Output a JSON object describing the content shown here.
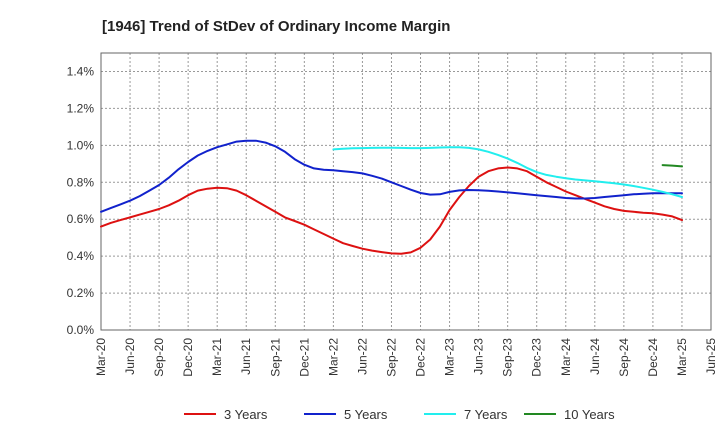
{
  "chart_data": {
    "type": "line",
    "title": "[1946]  Trend of StDev of Ordinary Income Margin",
    "xlabel": "",
    "ylabel": "",
    "x_ticks": [
      "Mar-20",
      "Jun-20",
      "Sep-20",
      "Dec-20",
      "Mar-21",
      "Jun-21",
      "Sep-21",
      "Dec-21",
      "Mar-22",
      "Jun-22",
      "Sep-22",
      "Dec-22",
      "Mar-23",
      "Jun-23",
      "Sep-23",
      "Dec-23",
      "Mar-24",
      "Jun-24",
      "Sep-24",
      "Dec-24",
      "Mar-25",
      "Jun-25"
    ],
    "y_ticks": [
      "0.0%",
      "0.2%",
      "0.4%",
      "0.6%",
      "0.8%",
      "1.0%",
      "1.2%",
      "1.4%"
    ],
    "ylim": [
      0,
      1.5
    ],
    "grid": true,
    "legend_position": "bottom",
    "series": [
      {
        "name": "3 Years",
        "color": "#dd1111",
        "x": [
          "Mar-20",
          "Apr-20",
          "May-20",
          "Jun-20",
          "Jul-20",
          "Aug-20",
          "Sep-20",
          "Oct-20",
          "Nov-20",
          "Dec-20",
          "Jan-21",
          "Feb-21",
          "Mar-21",
          "Apr-21",
          "May-21",
          "Jun-21",
          "Jul-21",
          "Aug-21",
          "Sep-21",
          "Oct-21",
          "Nov-21",
          "Dec-21",
          "Jan-22",
          "Feb-22",
          "Mar-22",
          "Apr-22",
          "May-22",
          "Jun-22",
          "Jul-22",
          "Aug-22",
          "Sep-22",
          "Oct-22",
          "Nov-22",
          "Dec-22",
          "Jan-23",
          "Feb-23",
          "Mar-23",
          "Apr-23",
          "May-23",
          "Jun-23",
          "Jul-23",
          "Aug-23",
          "Sep-23",
          "Oct-23",
          "Nov-23",
          "Dec-23",
          "Jan-24",
          "Feb-24",
          "Mar-24",
          "Apr-24",
          "May-24",
          "Jun-24",
          "Jul-24",
          "Aug-24",
          "Sep-24",
          "Oct-24",
          "Nov-24",
          "Dec-24",
          "Jan-25",
          "Feb-25",
          "Mar-25"
        ],
        "values": [
          0.56,
          0.58,
          0.595,
          0.61,
          0.625,
          0.64,
          0.655,
          0.675,
          0.7,
          0.73,
          0.755,
          0.765,
          0.77,
          0.768,
          0.755,
          0.73,
          0.7,
          0.67,
          0.64,
          0.61,
          0.59,
          0.57,
          0.545,
          0.52,
          0.495,
          0.47,
          0.455,
          0.44,
          0.43,
          0.422,
          0.415,
          0.413,
          0.42,
          0.445,
          0.49,
          0.56,
          0.65,
          0.72,
          0.78,
          0.83,
          0.86,
          0.875,
          0.88,
          0.875,
          0.86,
          0.83,
          0.8,
          0.775,
          0.75,
          0.73,
          0.71,
          0.69,
          0.67,
          0.655,
          0.645,
          0.64,
          0.635,
          0.632,
          0.625,
          0.615,
          0.595
        ]
      },
      {
        "name": "5 Years",
        "color": "#1122cc",
        "x": [
          "Mar-20",
          "Apr-20",
          "May-20",
          "Jun-20",
          "Jul-20",
          "Aug-20",
          "Sep-20",
          "Oct-20",
          "Nov-20",
          "Dec-20",
          "Jan-21",
          "Feb-21",
          "Mar-21",
          "Apr-21",
          "May-21",
          "Jun-21",
          "Jul-21",
          "Aug-21",
          "Sep-21",
          "Oct-21",
          "Nov-21",
          "Dec-21",
          "Jan-22",
          "Feb-22",
          "Mar-22",
          "Apr-22",
          "May-22",
          "Jun-22",
          "Jul-22",
          "Aug-22",
          "Sep-22",
          "Oct-22",
          "Nov-22",
          "Dec-22",
          "Jan-23",
          "Feb-23",
          "Mar-23",
          "Apr-23",
          "May-23",
          "Jun-23",
          "Jul-23",
          "Aug-23",
          "Sep-23",
          "Oct-23",
          "Nov-23",
          "Dec-23",
          "Jan-24",
          "Feb-24",
          "Mar-24",
          "Apr-24",
          "May-24",
          "Jun-24",
          "Jul-24",
          "Aug-24",
          "Sep-24",
          "Oct-24",
          "Nov-24",
          "Dec-24",
          "Jan-25",
          "Feb-25",
          "Mar-25"
        ],
        "values": [
          0.64,
          0.66,
          0.68,
          0.7,
          0.725,
          0.755,
          0.785,
          0.825,
          0.87,
          0.91,
          0.945,
          0.97,
          0.99,
          1.005,
          1.02,
          1.025,
          1.025,
          1.015,
          0.995,
          0.965,
          0.925,
          0.895,
          0.875,
          0.868,
          0.865,
          0.86,
          0.855,
          0.848,
          0.835,
          0.82,
          0.8,
          0.78,
          0.76,
          0.742,
          0.733,
          0.735,
          0.748,
          0.756,
          0.758,
          0.757,
          0.754,
          0.75,
          0.745,
          0.74,
          0.735,
          0.73,
          0.725,
          0.72,
          0.715,
          0.712,
          0.712,
          0.715,
          0.72,
          0.725,
          0.73,
          0.735,
          0.738,
          0.74,
          0.74,
          0.74,
          0.74
        ]
      },
      {
        "name": "7 Years",
        "color": "#22eeee",
        "x": [
          "Mar-22",
          "Apr-22",
          "May-22",
          "Jun-22",
          "Jul-22",
          "Aug-22",
          "Sep-22",
          "Oct-22",
          "Nov-22",
          "Dec-22",
          "Jan-23",
          "Feb-23",
          "Mar-23",
          "Apr-23",
          "May-23",
          "Jun-23",
          "Jul-23",
          "Aug-23",
          "Sep-23",
          "Oct-23",
          "Nov-23",
          "Dec-23",
          "Jan-24",
          "Feb-24",
          "Mar-24",
          "Apr-24",
          "May-24",
          "Jun-24",
          "Jul-24",
          "Aug-24",
          "Sep-24",
          "Oct-24",
          "Nov-24",
          "Dec-24",
          "Jan-25",
          "Feb-25",
          "Mar-25"
        ],
        "values": [
          0.978,
          0.982,
          0.984,
          0.985,
          0.986,
          0.987,
          0.987,
          0.986,
          0.985,
          0.985,
          0.986,
          0.988,
          0.99,
          0.99,
          0.986,
          0.978,
          0.965,
          0.948,
          0.928,
          0.905,
          0.878,
          0.855,
          0.84,
          0.83,
          0.822,
          0.815,
          0.81,
          0.805,
          0.8,
          0.795,
          0.788,
          0.78,
          0.77,
          0.76,
          0.748,
          0.735,
          0.72
        ]
      },
      {
        "name": "10 Years",
        "color": "#228822",
        "x": [
          "Jan-25",
          "Feb-25",
          "Mar-25"
        ],
        "values": [
          0.893,
          0.89,
          0.886
        ]
      }
    ]
  }
}
